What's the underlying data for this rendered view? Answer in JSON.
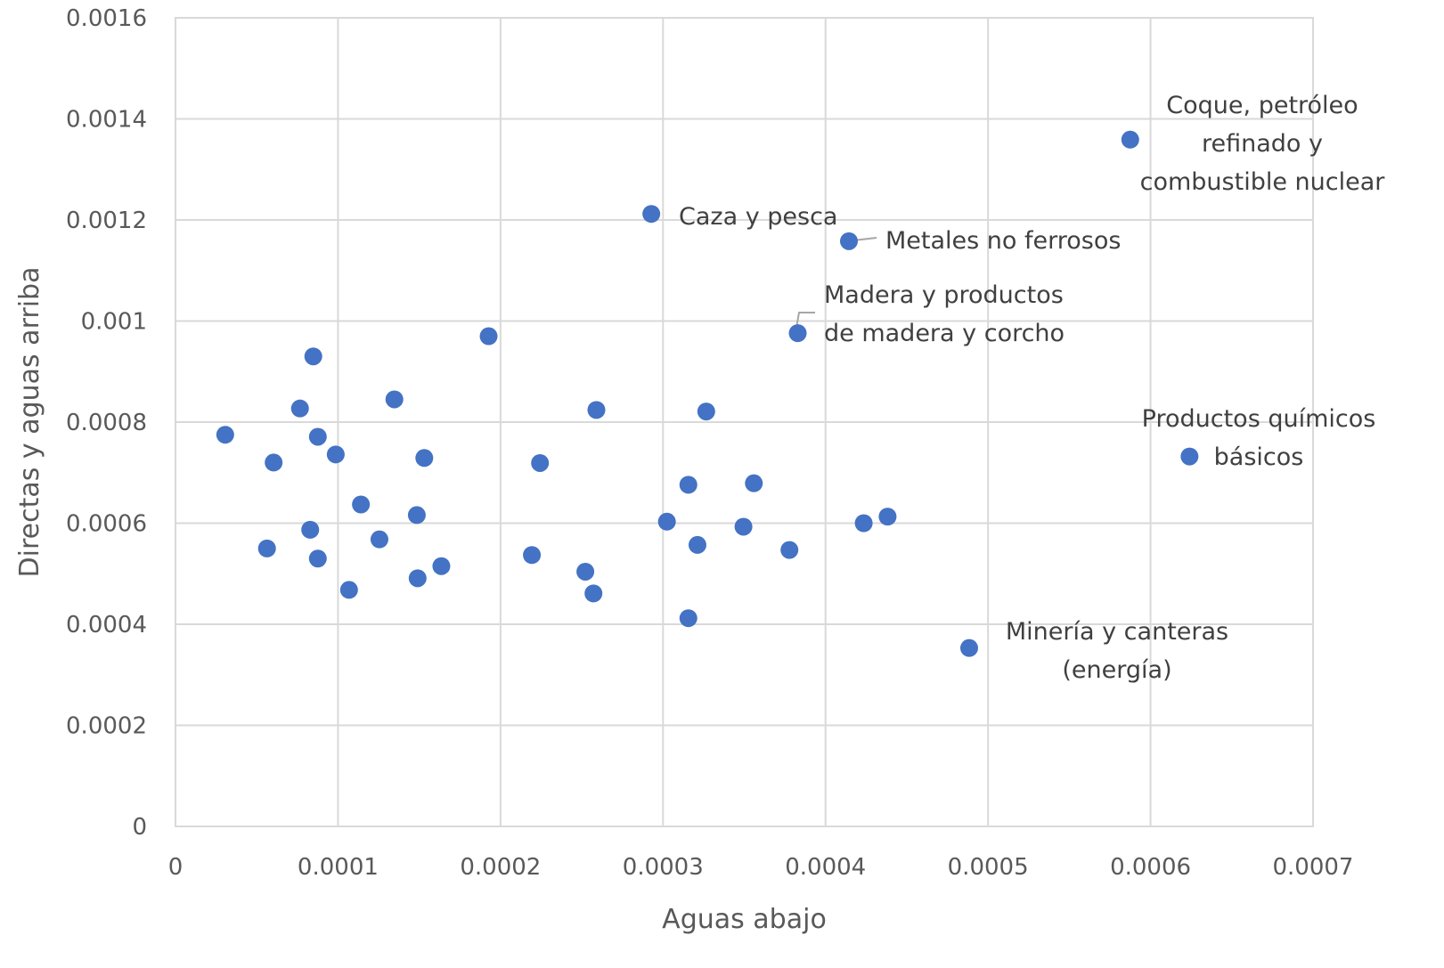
{
  "chart_data": {
    "type": "scatter",
    "title": "",
    "xlabel": "Aguas abajo",
    "ylabel": "Directas y aguas arriba",
    "xlim": [
      0,
      0.0007
    ],
    "ylim": [
      0,
      0.0016
    ],
    "x_ticks": [
      "0",
      "0.0001",
      "0.0002",
      "0.0003",
      "0.0004",
      "0.0005",
      "0.0006",
      "0.0007"
    ],
    "y_ticks": [
      "0",
      "0.0002",
      "0.0004",
      "0.0006",
      "0.0008",
      "0.001",
      "0.0012",
      "0.0014",
      "0.0016"
    ],
    "grid": true,
    "color": "#4472c4",
    "points": [
      {
        "x": 3.06e-05,
        "y": 0.000775
      },
      {
        "x": 5.63e-05,
        "y": 0.00055
      },
      {
        "x": 6.04e-05,
        "y": 0.00072
      },
      {
        "x": 7.66e-05,
        "y": 0.000827
      },
      {
        "x": 8.29e-05,
        "y": 0.000587
      },
      {
        "x": 8.48e-05,
        "y": 0.00093
      },
      {
        "x": 8.76e-05,
        "y": 0.00053
      },
      {
        "x": 8.76e-05,
        "y": 0.000771
      },
      {
        "x": 9.86e-05,
        "y": 0.000736
      },
      {
        "x": 0.0001068,
        "y": 0.000468
      },
      {
        "x": 0.0001141,
        "y": 0.000637
      },
      {
        "x": 0.0001255,
        "y": 0.000568
      },
      {
        "x": 0.0001347,
        "y": 0.000845
      },
      {
        "x": 0.0001485,
        "y": 0.000616
      },
      {
        "x": 0.000149,
        "y": 0.000491
      },
      {
        "x": 0.0001531,
        "y": 0.000729
      },
      {
        "x": 0.0001636,
        "y": 0.000515
      },
      {
        "x": 0.0001927,
        "y": 0.00097
      },
      {
        "x": 0.0002193,
        "y": 0.000537
      },
      {
        "x": 0.0002243,
        "y": 0.000719
      },
      {
        "x": 0.0002522,
        "y": 0.000504
      },
      {
        "x": 0.0002572,
        "y": 0.000461
      },
      {
        "x": 0.000259,
        "y": 0.000824
      },
      {
        "x": 0.0002928,
        "y": 0.001212,
        "label": "Caza y pesca"
      },
      {
        "x": 0.0003024,
        "y": 0.000603
      },
      {
        "x": 0.0003156,
        "y": 0.000676
      },
      {
        "x": 0.0003156,
        "y": 0.000412
      },
      {
        "x": 0.0003212,
        "y": 0.000557
      },
      {
        "x": 0.0003266,
        "y": 0.000821
      },
      {
        "x": 0.0003495,
        "y": 0.000593
      },
      {
        "x": 0.0003559,
        "y": 0.000679
      },
      {
        "x": 0.0003778,
        "y": 0.000547
      },
      {
        "x": 0.0003829,
        "y": 0.000976,
        "label": "Madera y productos de madera y corcho"
      },
      {
        "x": 0.0004144,
        "y": 0.001158,
        "label": "Metales no ferrosos"
      },
      {
        "x": 0.0004235,
        "y": 0.0006
      },
      {
        "x": 0.0004382,
        "y": 0.000613
      },
      {
        "x": 0.0004884,
        "y": 0.000353,
        "label": "Minería y canteras (energía)"
      },
      {
        "x": 0.0005875,
        "y": 0.001359,
        "label": "Coque, petróleo refinado y combustible nuclear"
      },
      {
        "x": 0.000624,
        "y": 0.000732,
        "label": "Productos químicos básicos"
      }
    ],
    "annotations": [
      {
        "lines": [
          "Caza y pesca"
        ]
      },
      {
        "lines": [
          "Metales no ferrosos"
        ]
      },
      {
        "lines": [
          "Madera y productos",
          "de madera y corcho"
        ]
      },
      {
        "lines": [
          "Coque, petróleo",
          "refinado y",
          "combustible nuclear"
        ]
      },
      {
        "lines": [
          "Productos químicos",
          "básicos"
        ]
      },
      {
        "lines": [
          "Minería y canteras",
          "(energía)"
        ]
      }
    ]
  }
}
